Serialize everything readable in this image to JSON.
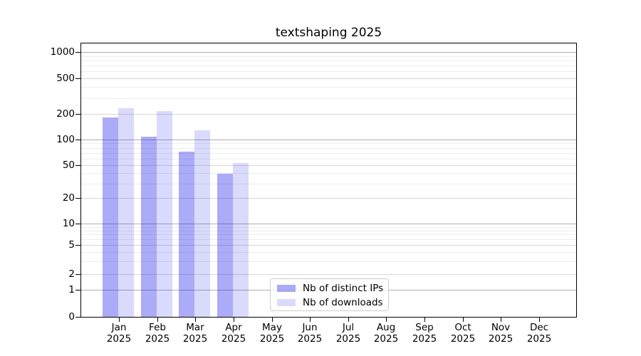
{
  "chart_data": {
    "type": "bar",
    "title": "textshaping 2025",
    "categories": [
      "Jan",
      "Feb",
      "Mar",
      "Apr",
      "May",
      "Jun",
      "Jul",
      "Aug",
      "Sep",
      "Oct",
      "Nov",
      "Dec"
    ],
    "x_year": "2025",
    "series": [
      {
        "name": "Nb of distinct IPs",
        "color": "#0A0AEB57",
        "values": [
          183,
          107,
          72,
          39,
          null,
          null,
          null,
          null,
          null,
          null,
          null,
          null
        ]
      },
      {
        "name": "Nb of downloads",
        "color": "#0A0AEB26",
        "values": [
          230,
          215,
          129,
          53,
          null,
          null,
          null,
          null,
          null,
          null,
          null,
          null
        ]
      }
    ],
    "yscale": "symlog",
    "yticks": [
      0,
      1,
      2,
      5,
      10,
      20,
      50,
      100,
      200,
      500,
      1000
    ],
    "ylim": [
      0,
      1280
    ],
    "grid": true,
    "legend_position": "lower center"
  },
  "colors": {
    "background": "#FFFFFF",
    "bar_distinct_ips": "#0A0AEB57",
    "bar_downloads": "#0A0AEB26",
    "grid_major": "#B0B0B0",
    "grid_mid": "#D7D7D7",
    "grid_minor": "#EDEDED",
    "axis": "#000000",
    "legend_border": "#CCCCCC"
  }
}
